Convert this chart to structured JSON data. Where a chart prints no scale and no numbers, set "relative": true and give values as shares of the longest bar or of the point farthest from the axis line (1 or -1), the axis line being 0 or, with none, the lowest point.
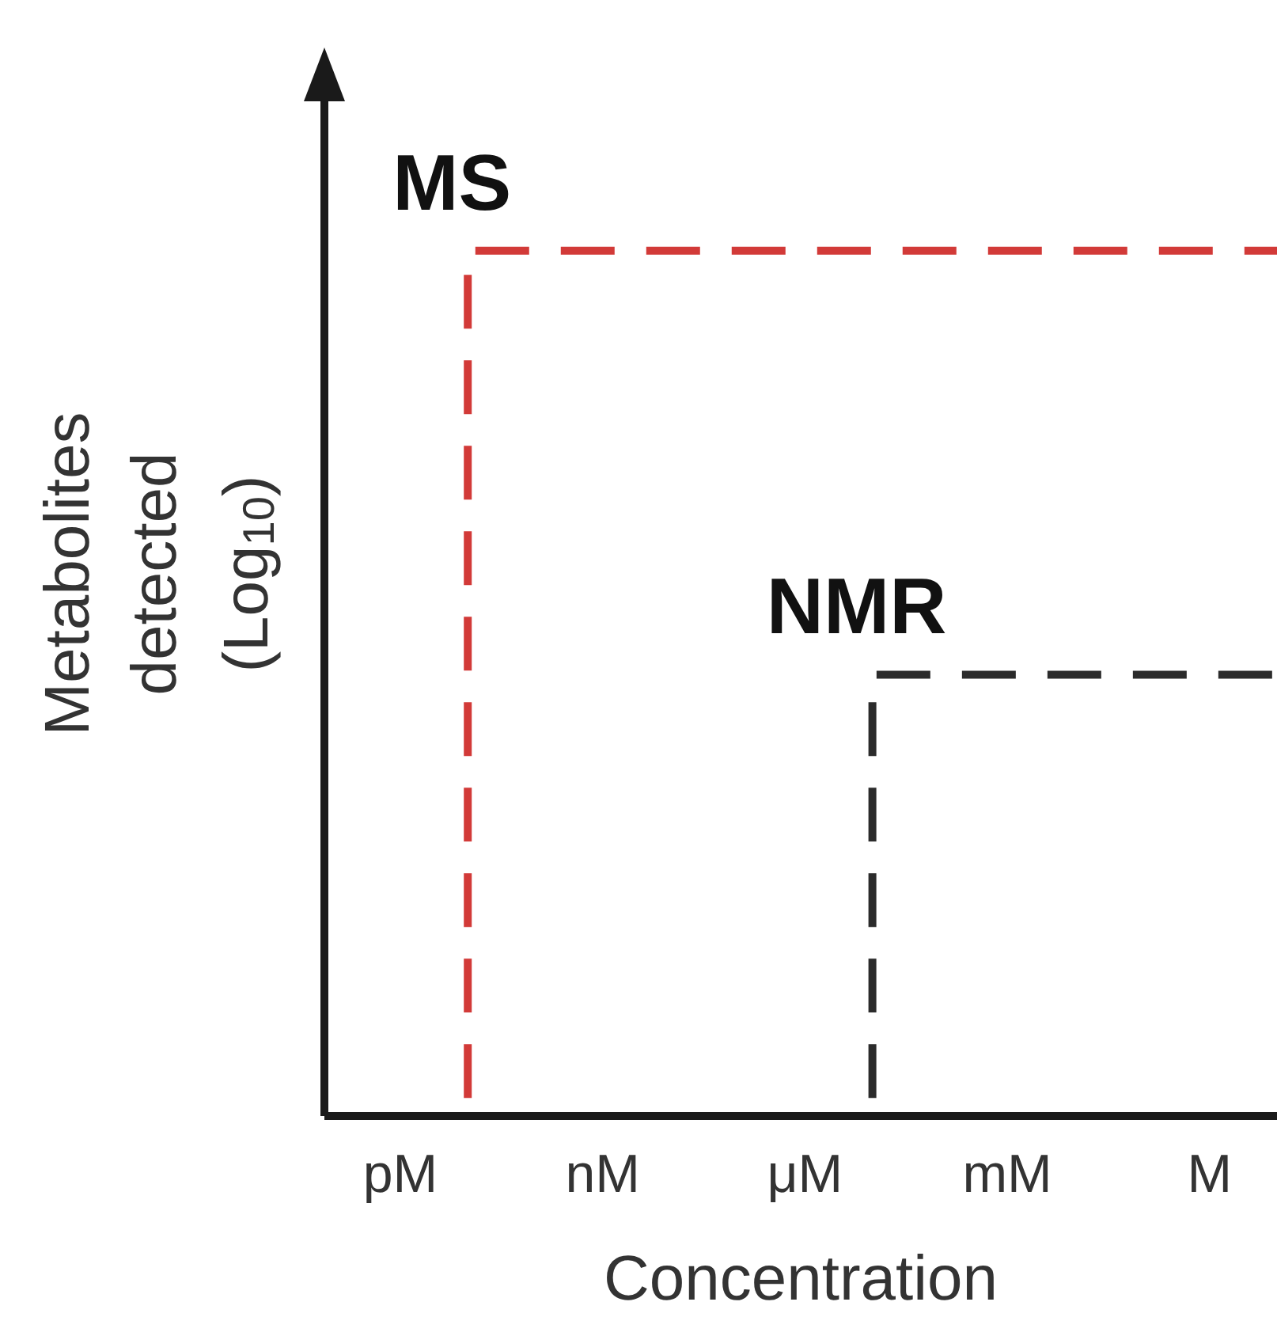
{
  "chart_data": {
    "type": "step",
    "xlabel": "Concentration",
    "ylabel": "Metabolites detected (Log$_{10}$)",
    "relative": true,
    "categories": [
      "pM",
      null,
      null,
      "nM",
      null,
      null,
      "μM",
      null,
      null,
      "mM",
      null,
      null,
      "M",
      null
    ],
    "series": [
      {
        "name": "MS",
        "color": "#d23a38",
        "values": [
          0,
          1,
          1,
          1,
          1,
          1,
          1,
          1,
          1,
          1,
          1,
          1,
          1,
          1
        ]
      },
      {
        "name": "NMR",
        "color": "#2b2b2b",
        "values": [
          null,
          null,
          null,
          null,
          null,
          null,
          0,
          0.51,
          0.51,
          0.51,
          0.51,
          0.51,
          0.51,
          0.51
        ]
      }
    ],
    "line_style": "dashed",
    "marker": "none",
    "grid": false,
    "legend": false
  }
}
